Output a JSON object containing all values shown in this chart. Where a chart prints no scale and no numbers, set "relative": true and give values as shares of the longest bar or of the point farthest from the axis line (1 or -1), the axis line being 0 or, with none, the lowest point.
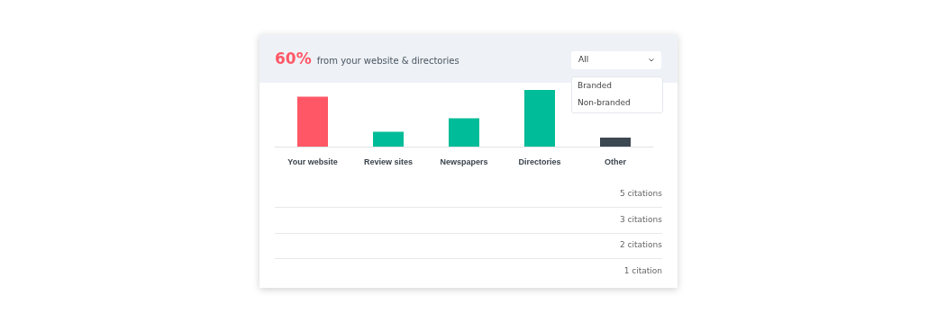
{
  "chart_data": {
    "type": "bar",
    "relative": true,
    "title": "60%",
    "subtitle": "from your website & directories",
    "categories": [
      "Your website",
      "Review sites",
      "Newspapers",
      "Directories",
      "Other"
    ],
    "values": [
      0.88,
      0.26,
      0.5,
      1,
      0.16
    ],
    "colors": [
      "#ff5766",
      "#00bc98",
      "#00bc98",
      "#00bc98",
      "#3c4852"
    ],
    "annotations": [
      "All",
      "Branded",
      "Non-branded",
      "5 citations",
      "3 citations",
      "2 citations",
      "1 citation"
    ]
  }
}
